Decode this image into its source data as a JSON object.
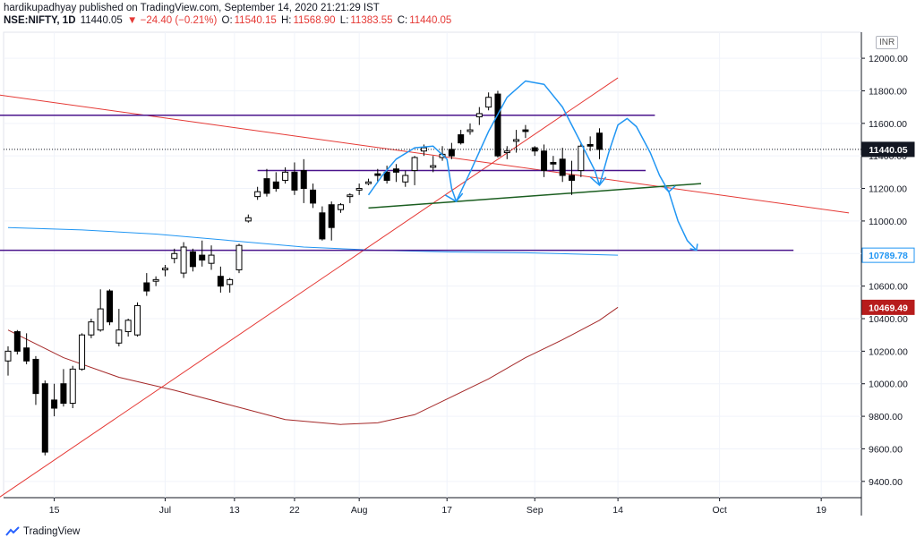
{
  "header": {
    "publisher_line": "hardikupadhyay published on TradingView.com, September 14, 2020 21:21:29 IST",
    "symbol": "NSE:NIFTY, 1D",
    "last": "11440.05",
    "change": "▼ −24.40 (−0.21%)",
    "o_label": "O:",
    "o": "11540.15",
    "h_label": "H:",
    "h": "11568.90",
    "l_label": "L:",
    "l": "11383.55",
    "c_label": "C:",
    "c": "11440.05"
  },
  "currency_badge": "INR",
  "footer": {
    "brand": "TradingView"
  },
  "colors": {
    "candle_up_border": "#000000",
    "candle_down": "#000000",
    "trendline_red": "#e53935",
    "resistance_purple": "#4a148c",
    "ma_blue": "#2196f3",
    "ma_darkred": "#a52a2a",
    "neckline_green": "#1b5e20",
    "pattern_blue": "#2196f3"
  },
  "chart_data": {
    "type": "candlestick",
    "ylim": [
      9300,
      12160
    ],
    "y_ticks": [
      9400,
      9600,
      9800,
      10000,
      10200,
      10400,
      10600,
      10800,
      11000,
      11200,
      11400,
      11600,
      11800,
      12000
    ],
    "y_tick_labels": [
      "9400.00",
      "9600.00",
      "9800.00",
      "10000.00",
      "10200.00",
      "10400.00",
      "10600.00",
      "10800.00",
      "11000.00",
      "11200.00",
      "11400.00",
      "11600.00",
      "11800.00",
      "12000.00"
    ],
    "x_tick_labels": [
      "15",
      "Jul",
      "13",
      "22",
      "Aug",
      "17",
      "Sep",
      "14",
      "Oct",
      "19"
    ],
    "price_labels": [
      {
        "label": "11440.05",
        "value": 11440.05,
        "style": "last"
      },
      {
        "label": "10789.78",
        "value": 10789.78,
        "style": "ma-blue"
      },
      {
        "label": "10469.49",
        "value": 10469.49,
        "style": "ma-red"
      }
    ],
    "ohlc": [
      [
        10140,
        10230,
        10050,
        10200
      ],
      [
        10320,
        10330,
        10180,
        10200
      ],
      [
        10220,
        10310,
        10120,
        10140
      ],
      [
        10150,
        10170,
        9870,
        9940
      ],
      [
        10000,
        10020,
        9560,
        9580
      ],
      [
        9900,
        10000,
        9800,
        9850
      ],
      [
        10000,
        10090,
        9860,
        9880
      ],
      [
        9880,
        10110,
        9850,
        10090
      ],
      [
        10090,
        10310,
        10080,
        10300
      ],
      [
        10300,
        10400,
        10280,
        10380
      ],
      [
        10330,
        10580,
        10320,
        10460
      ],
      [
        10570,
        10580,
        10360,
        10380
      ],
      [
        10250,
        10460,
        10230,
        10330
      ],
      [
        10320,
        10400,
        10290,
        10390
      ],
      [
        10300,
        10500,
        10290,
        10480
      ],
      [
        10620,
        10680,
        10540,
        10570
      ],
      [
        10630,
        10660,
        10600,
        10640
      ],
      [
        10700,
        10730,
        10660,
        10710
      ],
      [
        10770,
        10830,
        10740,
        10800
      ],
      [
        10680,
        10870,
        10650,
        10840
      ],
      [
        10810,
        10830,
        10690,
        10720
      ],
      [
        10790,
        10880,
        10720,
        10760
      ],
      [
        10740,
        10850,
        10700,
        10790
      ],
      [
        10660,
        10720,
        10560,
        10600
      ],
      [
        10610,
        10650,
        10560,
        10640
      ],
      [
        10700,
        10860,
        10680,
        10850
      ],
      [
        11000,
        11040,
        10990,
        11020
      ],
      [
        11150,
        11210,
        11130,
        11180
      ],
      [
        11260,
        11320,
        11150,
        11170
      ],
      [
        11240,
        11300,
        11180,
        11200
      ],
      [
        11250,
        11330,
        11230,
        11300
      ],
      [
        11300,
        11360,
        11160,
        11190
      ],
      [
        11310,
        11380,
        11110,
        11200
      ],
      [
        11190,
        11230,
        11080,
        11110
      ],
      [
        11050,
        11090,
        10880,
        10890
      ],
      [
        11100,
        11120,
        10880,
        10960
      ],
      [
        11070,
        11110,
        11050,
        11100
      ],
      [
        11150,
        11170,
        11110,
        11160
      ],
      [
        11190,
        11230,
        11160,
        11200
      ],
      [
        11230,
        11260,
        11220,
        11240
      ],
      [
        11290,
        11320,
        11240,
        11280
      ],
      [
        11300,
        11340,
        11230,
        11250
      ],
      [
        11320,
        11350,
        11240,
        11300
      ],
      [
        11240,
        11310,
        11210,
        11280
      ],
      [
        11310,
        11400,
        11220,
        11390
      ],
      [
        11430,
        11470,
        11400,
        11450
      ],
      [
        11330,
        11400,
        11300,
        11340
      ],
      [
        11390,
        11460,
        11370,
        11410
      ],
      [
        11440,
        11480,
        11380,
        11400
      ],
      [
        11530,
        11560,
        11470,
        11480
      ],
      [
        11550,
        11600,
        11530,
        11560
      ],
      [
        11640,
        11700,
        11590,
        11660
      ],
      [
        11700,
        11790,
        11680,
        11760
      ],
      [
        11780,
        11800,
        11390,
        11400
      ],
      [
        11420,
        11460,
        11380,
        11430
      ],
      [
        11490,
        11560,
        11420,
        11500
      ],
      [
        11560,
        11590,
        11510,
        11550
      ],
      [
        11450,
        11460,
        11400,
        11430
      ],
      [
        11430,
        11470,
        11270,
        11310
      ],
      [
        11360,
        11400,
        11310,
        11350
      ],
      [
        11380,
        11450,
        11240,
        11280
      ],
      [
        11280,
        11370,
        11160,
        11250
      ],
      [
        11310,
        11480,
        11270,
        11460
      ],
      [
        11470,
        11520,
        11430,
        11460
      ],
      [
        11540,
        11570,
        11380,
        11440
      ]
    ],
    "overlays": [
      {
        "name": "red-trend-up",
        "from": [
          -1,
          9300
        ],
        "to": [
          66,
          11880
        ]
      },
      {
        "name": "red-trend-down",
        "from": [
          -8,
          11830
        ],
        "to": [
          91,
          11050
        ]
      },
      {
        "name": "purple-resistance-top",
        "from": [
          -8,
          11650
        ],
        "to": [
          70,
          11650
        ]
      },
      {
        "name": "purple-resistance-mid",
        "from": [
          27,
          11310
        ],
        "to": [
          69,
          11310
        ]
      },
      {
        "name": "purple-support",
        "from": [
          -8,
          10820
        ],
        "to": [
          85,
          10820
        ]
      },
      {
        "name": "green-neckline",
        "from": [
          39,
          11080
        ],
        "to": [
          75,
          11230
        ]
      }
    ]
  }
}
